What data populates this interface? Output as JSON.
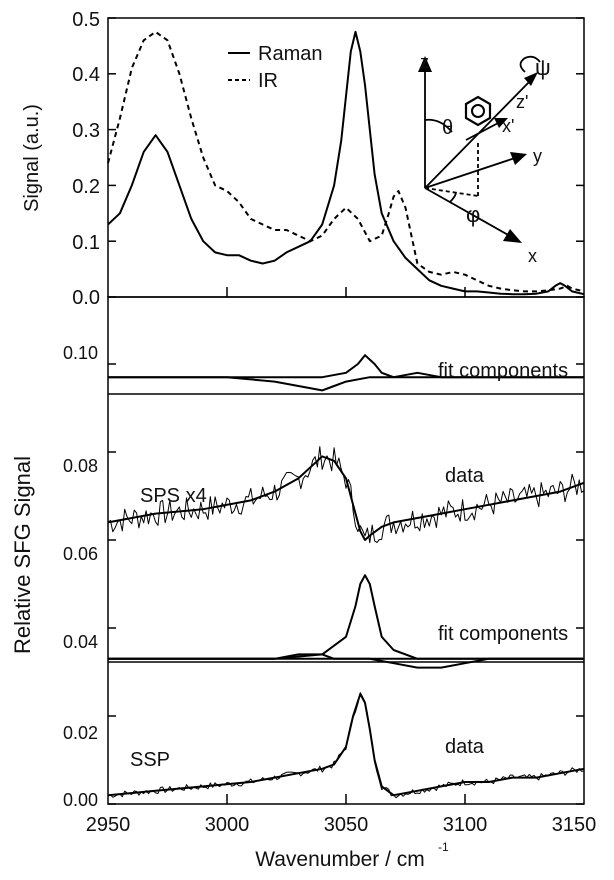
{
  "chart_data": [
    {
      "type": "line",
      "panel": "top",
      "ylabel": "Signal (a.u.)",
      "xlim": [
        2950,
        3150
      ],
      "ylim": [
        0,
        0.5
      ],
      "yticks": [
        "0.0",
        "0.1",
        "0.2",
        "0.3",
        "0.4",
        "0.5"
      ],
      "legend": {
        "placement": "top-center",
        "entries": [
          "Raman",
          "IR"
        ]
      },
      "series": [
        {
          "name": "Raman",
          "style": "solid",
          "x": [
            2950,
            2955,
            2960,
            2965,
            2970,
            2975,
            2980,
            2985,
            2990,
            2995,
            3000,
            3005,
            3010,
            3015,
            3020,
            3025,
            3030,
            3035,
            3040,
            3045,
            3048,
            3050,
            3052,
            3054,
            3056,
            3058,
            3060,
            3062,
            3065,
            3070,
            3075,
            3080,
            3085,
            3090,
            3095,
            3100,
            3105,
            3110,
            3115,
            3120,
            3125,
            3130,
            3135,
            3138,
            3140,
            3142,
            3145,
            3150
          ],
          "y": [
            0.13,
            0.15,
            0.2,
            0.26,
            0.29,
            0.26,
            0.2,
            0.14,
            0.1,
            0.08,
            0.075,
            0.075,
            0.065,
            0.06,
            0.065,
            0.08,
            0.09,
            0.1,
            0.13,
            0.2,
            0.28,
            0.36,
            0.44,
            0.475,
            0.44,
            0.38,
            0.3,
            0.22,
            0.15,
            0.1,
            0.07,
            0.05,
            0.03,
            0.02,
            0.015,
            0.01,
            0.01,
            0.008,
            0.006,
            0.005,
            0.005,
            0.006,
            0.01,
            0.02,
            0.025,
            0.02,
            0.01,
            0.005
          ]
        },
        {
          "name": "IR",
          "style": "dashed",
          "x": [
            2950,
            2955,
            2960,
            2965,
            2970,
            2975,
            2980,
            2985,
            2990,
            2995,
            3000,
            3005,
            3010,
            3015,
            3020,
            3025,
            3030,
            3035,
            3040,
            3045,
            3050,
            3055,
            3060,
            3065,
            3068,
            3070,
            3072,
            3075,
            3078,
            3080,
            3085,
            3090,
            3095,
            3100,
            3105,
            3110,
            3115,
            3120,
            3125,
            3130,
            3135,
            3140,
            3143,
            3145,
            3150
          ],
          "y": [
            0.24,
            0.32,
            0.41,
            0.46,
            0.475,
            0.46,
            0.4,
            0.32,
            0.25,
            0.2,
            0.19,
            0.17,
            0.14,
            0.13,
            0.12,
            0.12,
            0.11,
            0.1,
            0.11,
            0.14,
            0.16,
            0.14,
            0.1,
            0.11,
            0.15,
            0.18,
            0.19,
            0.16,
            0.1,
            0.06,
            0.045,
            0.04,
            0.045,
            0.04,
            0.03,
            0.02,
            0.015,
            0.012,
            0.01,
            0.01,
            0.012,
            0.015,
            0.02,
            0.015,
            0.01
          ]
        }
      ]
    },
    {
      "type": "line",
      "panel": "bottom",
      "xlabel": "Wavenumber / cm",
      "xlabel_sup": "-1",
      "ylabel": "Relative SFG Signal",
      "xlim": [
        2950,
        3150
      ],
      "ylim": [
        0,
        0.11
      ],
      "xticks": [
        "2950",
        "3000",
        "3050",
        "3100",
        "3150"
      ],
      "yticks": [
        "0.00",
        "0.02",
        "0.04",
        "0.06",
        "0.08",
        "0.10"
      ],
      "annotations": [
        "SPS x4",
        "data",
        "fit components",
        "fit components",
        "SSP",
        "data"
      ],
      "series": [
        {
          "name": "SPS x4 fit",
          "x": [
            2950,
            2970,
            2990,
            3010,
            3020,
            3030,
            3036,
            3040,
            3045,
            3050,
            3053,
            3056,
            3058,
            3060,
            3065,
            3070,
            3080,
            3090,
            3100,
            3110,
            3120,
            3130,
            3140,
            3150
          ],
          "y": [
            0.064,
            0.066,
            0.067,
            0.069,
            0.071,
            0.074,
            0.077,
            0.079,
            0.078,
            0.074,
            0.068,
            0.062,
            0.06,
            0.061,
            0.063,
            0.064,
            0.065,
            0.066,
            0.067,
            0.068,
            0.069,
            0.07,
            0.071,
            0.073
          ]
        },
        {
          "name": "SPS fit component (positive)",
          "x": [
            2950,
            3040,
            3050,
            3055,
            3058,
            3060,
            3062,
            3065,
            3070,
            3080,
            3090,
            3150
          ],
          "y": [
            0.097,
            0.097,
            0.098,
            0.1,
            0.102,
            0.101,
            0.1,
            0.098,
            0.097,
            0.098,
            0.097,
            0.097
          ]
        },
        {
          "name": "SPS fit component (negative)",
          "x": [
            2950,
            3000,
            3020,
            3030,
            3040,
            3045,
            3050,
            3060,
            3070,
            3150
          ],
          "y": [
            0.097,
            0.097,
            0.096,
            0.095,
            0.094,
            0.095,
            0.096,
            0.097,
            0.097,
            0.097
          ]
        },
        {
          "name": "SSP fit component (peak)",
          "x": [
            2950,
            3020,
            3040,
            3050,
            3054,
            3056,
            3058,
            3060,
            3062,
            3065,
            3070,
            3080,
            3150
          ],
          "y": [
            0.033,
            0.033,
            0.034,
            0.038,
            0.045,
            0.05,
            0.052,
            0.05,
            0.045,
            0.038,
            0.035,
            0.033,
            0.033
          ]
        },
        {
          "name": "SSP fit component (small)",
          "x": [
            2950,
            3000,
            3020,
            3030,
            3040,
            3045,
            3050,
            3060,
            3150
          ],
          "y": [
            0.033,
            0.033,
            0.033,
            0.034,
            0.034,
            0.033,
            0.033,
            0.033,
            0.033
          ]
        },
        {
          "name": "SSP fit component (negative)",
          "x": [
            2950,
            3050,
            3060,
            3070,
            3080,
            3085,
            3090,
            3100,
            3110,
            3150
          ],
          "y": [
            0.033,
            0.033,
            0.033,
            0.032,
            0.031,
            0.031,
            0.031,
            0.032,
            0.033,
            0.033
          ]
        },
        {
          "name": "SSP fit",
          "x": [
            2950,
            2970,
            2990,
            3010,
            3020,
            3030,
            3040,
            3045,
            3050,
            3053,
            3056,
            3058,
            3060,
            3062,
            3065,
            3070,
            3080,
            3090,
            3100,
            3110,
            3120,
            3130,
            3140,
            3150
          ],
          "y": [
            0.002,
            0.003,
            0.004,
            0.005,
            0.006,
            0.007,
            0.008,
            0.009,
            0.013,
            0.02,
            0.025,
            0.023,
            0.017,
            0.01,
            0.004,
            0.002,
            0.003,
            0.004,
            0.005,
            0.005,
            0.006,
            0.006,
            0.007,
            0.008
          ]
        }
      ]
    }
  ],
  "inset": {
    "axes": [
      "z",
      "z'",
      "x'",
      "y",
      "x"
    ],
    "angles": [
      "ψ",
      "θ",
      "φ"
    ]
  }
}
